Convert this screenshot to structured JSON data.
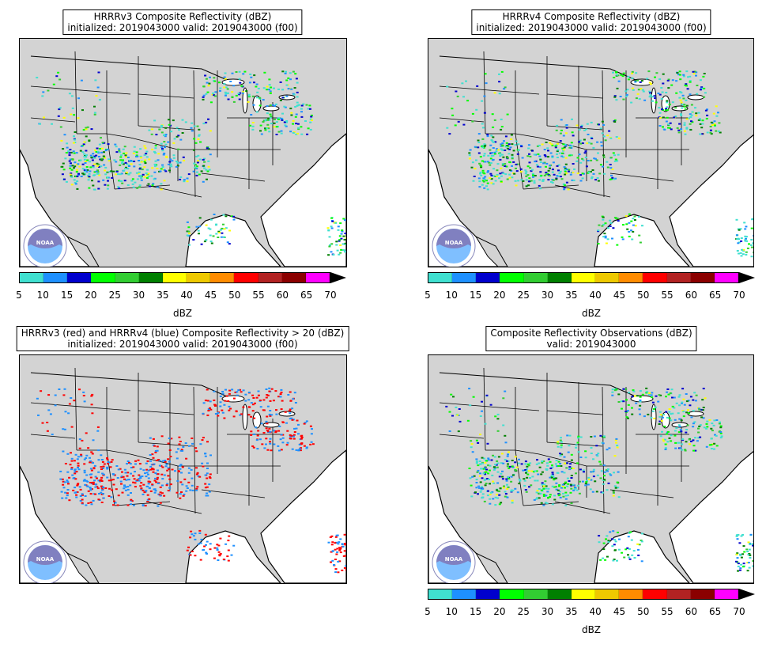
{
  "panels": [
    {
      "title_line1": "HRRRv3 Composite Reflectivity (dBZ)",
      "title_line2": "initialized: 2019043000 valid: 2019043000 (f00)"
    },
    {
      "title_line1": "HRRRv4 Composite Reflectivity (dBZ)",
      "title_line2": "initialized: 2019043000 valid: 2019043000 (f00)"
    },
    {
      "title_line1": "HRRRv3 (red) and HRRRv4 (blue) Composite Reflectivity > 20 (dBZ)",
      "title_line2": "initialized: 2019043000 valid: 2019043000 (f00)"
    },
    {
      "title_line1": "Composite Reflectivity Observations (dBZ)",
      "title_line2": "valid: 2019043000"
    }
  ],
  "colorbar": {
    "label": "dBZ",
    "ticks": [
      "5",
      "10",
      "15",
      "20",
      "25",
      "30",
      "35",
      "40",
      "45",
      "50",
      "55",
      "60",
      "65",
      "70"
    ],
    "colors": [
      "#40e0d0",
      "#1e90ff",
      "#0000cd",
      "#00ff00",
      "#32cd32",
      "#008000",
      "#ffff00",
      "#eec900",
      "#ff8c00",
      "#ff0000",
      "#b22222",
      "#8b0000",
      "#ff00ff"
    ],
    "extend_color": "#000000"
  },
  "logo": {
    "text": "NOAA",
    "icon": "noaa-logo"
  }
}
